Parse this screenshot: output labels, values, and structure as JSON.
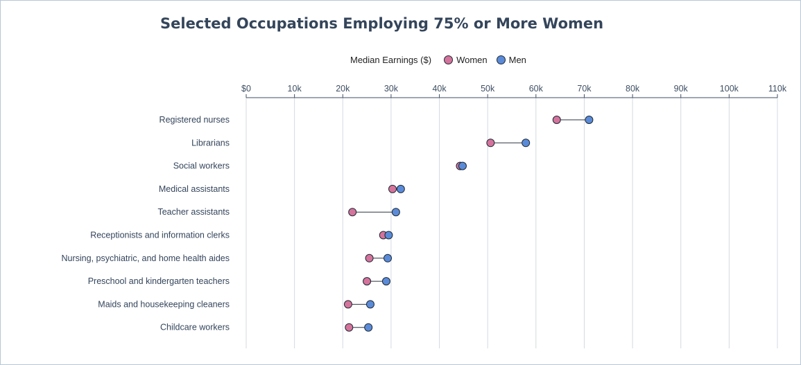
{
  "chart_data": {
    "type": "dumbbell",
    "title": "Selected Occupations Employing 75% or More Women",
    "legend_title": "Median Earnings ($)",
    "series_names": [
      "Women",
      "Men"
    ],
    "colors": {
      "women": "#d4739b",
      "men": "#5b8bd8"
    },
    "x_range": [
      0,
      110000
    ],
    "x_ticks": [
      {
        "value": 0,
        "label": "$0"
      },
      {
        "value": 10000,
        "label": "10k"
      },
      {
        "value": 20000,
        "label": "20k"
      },
      {
        "value": 30000,
        "label": "30k"
      },
      {
        "value": 40000,
        "label": "40k"
      },
      {
        "value": 50000,
        "label": "50k"
      },
      {
        "value": 60000,
        "label": "60k"
      },
      {
        "value": 70000,
        "label": "70k"
      },
      {
        "value": 80000,
        "label": "80k"
      },
      {
        "value": 90000,
        "label": "90k"
      },
      {
        "value": 100000,
        "label": "100k"
      },
      {
        "value": 110000,
        "label": "110k"
      }
    ],
    "categories": [
      "Registered nurses",
      "Librarians",
      "Social workers",
      "Medical assistants",
      "Teacher assistants",
      "Receptionists and information clerks",
      "Nursing, psychiatric, and home health aides",
      "Preschool and kindergarten teachers",
      "Maids and housekeeping cleaners",
      "Childcare workers"
    ],
    "women": [
      64300,
      50600,
      44300,
      30300,
      22000,
      28400,
      25500,
      25000,
      21100,
      21300
    ],
    "men": [
      71000,
      57900,
      44800,
      32000,
      31000,
      29500,
      29300,
      29000,
      25700,
      25300
    ]
  }
}
